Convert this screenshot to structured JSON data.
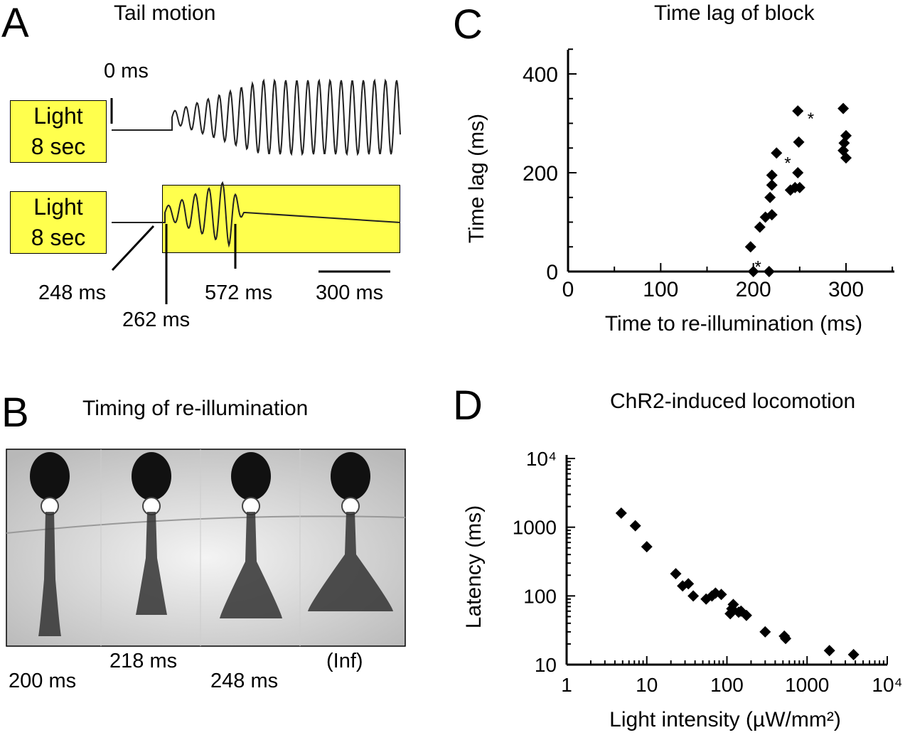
{
  "panelA": {
    "letter": "A",
    "title": "Tail motion",
    "zero_label": "0 ms",
    "light_box": [
      "Light",
      "8 sec"
    ],
    "markers": [
      "248 ms",
      "262 ms",
      "572 ms"
    ],
    "scalebar": "300 ms"
  },
  "panelB": {
    "letter": "B",
    "title": "Timing of re-illumination",
    "frames": [
      "200 ms",
      "218 ms",
      "248 ms",
      "(Inf)"
    ]
  },
  "panelC": {
    "letter": "C",
    "title": "Time lag of block"
  },
  "panelD": {
    "letter": "D",
    "title": "ChR2-induced locomotion"
  },
  "chart_data": [
    {
      "id": "C",
      "type": "scatter",
      "title": "Time lag of block",
      "xlabel": "Time to re-illumination (ms)",
      "ylabel": "Time lag (ms)",
      "xlim": [
        0,
        350
      ],
      "ylim": [
        0,
        450
      ],
      "xticks": [
        0,
        100,
        200,
        300
      ],
      "yticks": [
        0,
        200,
        400
      ],
      "marker": "diamond",
      "points": [
        [
          197,
          50
        ],
        [
          200,
          0
        ],
        [
          217,
          0
        ],
        [
          207,
          90
        ],
        [
          213,
          110
        ],
        [
          220,
          115
        ],
        [
          218,
          150
        ],
        [
          220,
          175
        ],
        [
          220,
          195
        ],
        [
          225,
          240
        ],
        [
          245,
          170
        ],
        [
          250,
          170
        ],
        [
          240,
          165
        ],
        [
          248,
          200
        ],
        [
          249,
          262
        ],
        [
          248,
          325
        ],
        [
          297,
          330
        ],
        [
          300,
          275
        ],
        [
          298,
          260
        ],
        [
          297,
          245
        ],
        [
          300,
          230
        ]
      ],
      "asterisks": [
        [
          205,
          18
        ],
        [
          237,
          228
        ],
        [
          262,
          318
        ]
      ]
    },
    {
      "id": "D",
      "type": "scatter",
      "title": "ChR2-induced locomotion",
      "xlabel": "Light intensity (µW/mm²)",
      "ylabel": "Latency (ms)",
      "x_scale": "log",
      "y_scale": "log",
      "xlim": [
        1,
        10000
      ],
      "ylim": [
        10,
        10000
      ],
      "xtick_labels": [
        "1",
        "10",
        "100",
        "1000",
        "10⁴"
      ],
      "ytick_labels": [
        "10",
        "100",
        "1000",
        "10⁴"
      ],
      "marker": "diamond",
      "points": [
        [
          4.8,
          1600
        ],
        [
          7.2,
          1050
        ],
        [
          10,
          520
        ],
        [
          23,
          210
        ],
        [
          28,
          140
        ],
        [
          33,
          150
        ],
        [
          38,
          100
        ],
        [
          55,
          90
        ],
        [
          65,
          100
        ],
        [
          72,
          110
        ],
        [
          85,
          105
        ],
        [
          110,
          55
        ],
        [
          115,
          65
        ],
        [
          120,
          75
        ],
        [
          140,
          58
        ],
        [
          150,
          60
        ],
        [
          175,
          52
        ],
        [
          300,
          30
        ],
        [
          520,
          26
        ],
        [
          540,
          24
        ],
        [
          1900,
          16
        ],
        [
          3800,
          14
        ]
      ]
    }
  ]
}
